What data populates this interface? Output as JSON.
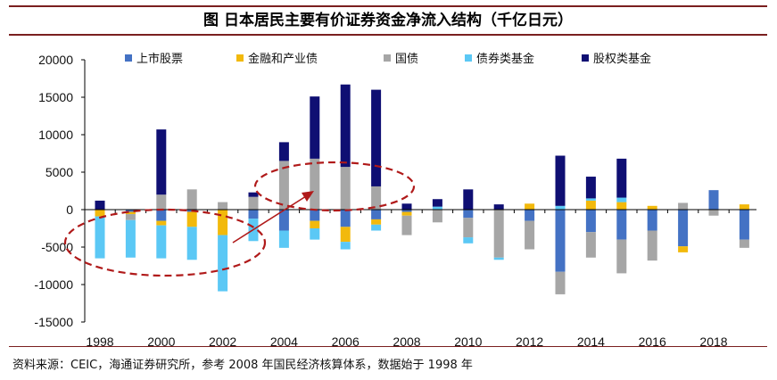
{
  "title": "图  日本居民主要有价证券资金净流入结构（千亿日元）",
  "source": "资料来源：CEIC，海通证券研究所，参考 2008 年国民经济核算体系，数据始于 1998 年",
  "colors": {
    "上市股票": "#4472c4",
    "金融和产业债": "#f2b90c",
    "国债": "#a6a6a6",
    "债券类基金": "#5bc8f5",
    "股权类基金": "#0f0f73",
    "annotation": "#b01a1a"
  },
  "chart_data": {
    "type": "bar",
    "stacked": true,
    "title": "日本居民主要有价证券资金净流入结构（千亿日元）",
    "ylim": [
      -15000,
      20000
    ],
    "yticks": [
      -15000,
      -10000,
      -5000,
      0,
      5000,
      10000,
      15000,
      20000
    ],
    "xtick_labels": [
      "1998",
      "2000",
      "2002",
      "2004",
      "2006",
      "2008",
      "2010",
      "2012",
      "2014",
      "2016",
      "2018"
    ],
    "categories": [
      "1998",
      "1999",
      "2000",
      "2001",
      "2002",
      "2003",
      "2004",
      "2005",
      "2006",
      "2007",
      "2008",
      "2009",
      "2010",
      "2011",
      "2012",
      "2013",
      "2014",
      "2015",
      "2016",
      "2017",
      "2018",
      "2019"
    ],
    "series": [
      {
        "name": "上市股票",
        "values": [
          0,
          -300,
          -1500,
          -300,
          0,
          -1200,
          -2800,
          -1500,
          -2300,
          -1300,
          -300,
          0,
          -1100,
          0,
          -1500,
          -8300,
          -3000,
          -4000,
          -2800,
          -4900,
          2600,
          -4000
        ]
      },
      {
        "name": "金融和产业债",
        "values": [
          -900,
          -300,
          -600,
          -2000,
          -3400,
          0,
          0,
          -1000,
          -2000,
          -700,
          -500,
          0,
          0,
          0,
          800,
          0,
          1200,
          1000,
          500,
          -800,
          0,
          700
        ]
      },
      {
        "name": "国债",
        "values": [
          0,
          -800,
          2000,
          2700,
          1000,
          1700,
          6500,
          6800,
          5700,
          3100,
          -2600,
          -1700,
          -2600,
          -6400,
          -3800,
          -3000,
          -3400,
          -4500,
          -4000,
          900,
          -800,
          -1100
        ]
      },
      {
        "name": "债券类基金",
        "values": [
          -5600,
          -5000,
          -4400,
          -4400,
          -7500,
          -3000,
          -2300,
          -1500,
          -1000,
          -800,
          0,
          400,
          -800,
          -300,
          0,
          500,
          300,
          600,
          0,
          0,
          0,
          0
        ]
      },
      {
        "name": "股权类基金",
        "values": [
          1200,
          0,
          8700,
          0,
          0,
          600,
          2500,
          8300,
          11000,
          12900,
          800,
          1000,
          2700,
          700,
          0,
          6700,
          2900,
          5200,
          0,
          0,
          0,
          0
        ]
      }
    ],
    "legend_position": "top",
    "annotations": "两个红色虚线椭圆及一个向右上的红色箭头（1998–2003 债券类基金流出 → 2004–2007 股权类基金流入）"
  }
}
